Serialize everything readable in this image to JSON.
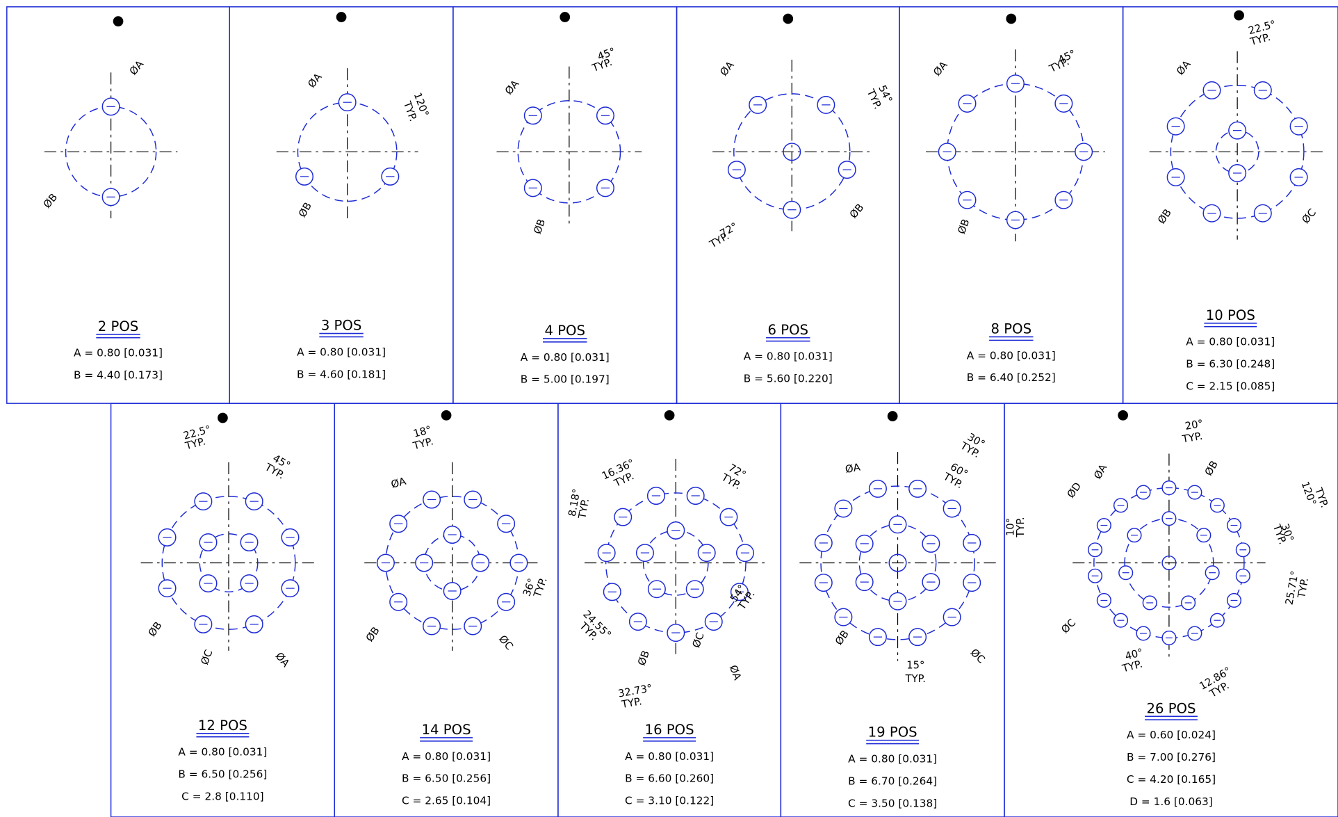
{
  "panels": [
    {
      "title": "2 POS",
      "specs": [
        "A = 0.80 [0.031]",
        "B = 4.40 [0.173]"
      ],
      "labels": [
        "ØA",
        "ØB"
      ]
    },
    {
      "title": "3 POS",
      "specs": [
        "A = 0.80 [0.031]",
        "B = 4.60 [0.181]"
      ],
      "labels": [
        "ØA",
        "ØB",
        "120°",
        "TYP."
      ]
    },
    {
      "title": "4 POS",
      "specs": [
        "A = 0.80 [0.031]",
        "B = 5.00 [0.197]"
      ],
      "labels": [
        "ØA",
        "ØB",
        "45°",
        "TYP."
      ]
    },
    {
      "title": "6 POS",
      "specs": [
        "A = 0.80 [0.031]",
        "B = 5.60 [0.220]"
      ],
      "labels": [
        "ØA",
        "ØB",
        "54°",
        "TYP.",
        "72°",
        "TYP."
      ]
    },
    {
      "title": "8 POS",
      "specs": [
        "A = 0.80 [0.031]",
        "B = 6.40 [0.252]"
      ],
      "labels": [
        "ØA",
        "ØB",
        "45°",
        "TYP."
      ]
    },
    {
      "title": "10 POS",
      "specs": [
        "A = 0.80 [0.031]",
        "B = 6.30 [0.248]",
        "C = 2.15 [0.085]"
      ],
      "labels": [
        "22.5°",
        "TYP.",
        "ØA",
        "ØB",
        "ØC"
      ]
    },
    {
      "title": "12 POS",
      "specs": [
        "A = 0.80 [0.031]",
        "B = 6.50 [0.256]",
        "C = 2.8 [0.110]"
      ],
      "labels": [
        "22.5°",
        "TYP.",
        "45°",
        "TYP.",
        "ØB",
        "ØC",
        "ØA"
      ]
    },
    {
      "title": "14 POS",
      "specs": [
        "A = 0.80 [0.031]",
        "B = 6.50 [0.256]",
        "C = 2.65 [0.104]"
      ],
      "labels": [
        "18°",
        "TYP.",
        "ØA",
        "ØB",
        "ØC",
        "36°",
        "TYP."
      ]
    },
    {
      "title": "16 POS",
      "specs": [
        "A = 0.80 [0.031]",
        "B = 6.60 [0.260]",
        "C = 3.10 [0.122]"
      ],
      "labels": [
        "16.36°",
        "TYP.",
        "72°",
        "TYP.",
        "8.18°",
        "TYP.",
        "24.55°",
        "TYP.",
        "ØB",
        "ØC",
        "ØA",
        "54°",
        "TYP.",
        "32.73°",
        "TYP."
      ]
    },
    {
      "title": "19 POS",
      "specs": [
        "A = 0.80 [0.031]",
        "B = 6.70 [0.264]",
        "C = 3.50 [0.138]"
      ],
      "labels": [
        "30°",
        "TYP.",
        "60°",
        "TYP.",
        "ØA",
        "ØB",
        "15°",
        "TYP.",
        "ØC"
      ]
    },
    {
      "title": "26 POS",
      "specs": [
        "A = 0.60 [0.024]",
        "B = 7.00 [0.276]",
        "C = 4.20 [0.165]",
        "D = 1.6 [0.063]"
      ],
      "labels": [
        "20°",
        "TYP.",
        "ØA",
        "ØB",
        "ØD",
        "120°",
        "TYP.",
        "10°",
        "TYP.",
        "30°",
        "TYP.",
        "25.71°",
        "TYP.",
        "ØC",
        "40°",
        "TYP.",
        "12.86°",
        "TYP."
      ]
    }
  ]
}
